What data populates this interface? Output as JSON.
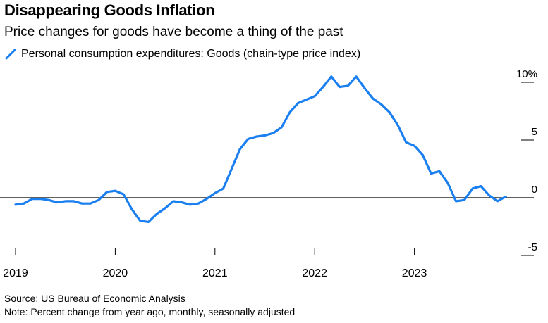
{
  "header": {
    "title": "Disappearing Goods Inflation",
    "subtitle": "Price changes for goods have become a thing of the past"
  },
  "footer": {
    "source": "Source: US Bureau of Economic Analysis",
    "note": "Note: Percent change from year ago, monthly, seasonally adjusted"
  },
  "colors": {
    "series": "#1a7ff0",
    "zero_line": "#000000",
    "tick": "#000000"
  },
  "chart_data": {
    "type": "line",
    "title": "Disappearing Goods Inflation",
    "subtitle": "Price changes for goods have become a thing of the past",
    "legend_position": "top-left",
    "grid": false,
    "y_axis_side": "right",
    "ylim": [
      -5,
      10
    ],
    "xlim": [
      "2019-01",
      "2023-11"
    ],
    "y_ticks": [
      {
        "value": 10,
        "label": "10%"
      },
      {
        "value": 5,
        "label": "5"
      },
      {
        "value": 0,
        "label": "0"
      },
      {
        "value": -5,
        "label": "-5"
      }
    ],
    "x_ticks": [
      {
        "value": "2019-01",
        "label": "2019"
      },
      {
        "value": "2020-01",
        "label": "2020"
      },
      {
        "value": "2021-01",
        "label": "2021"
      },
      {
        "value": "2022-01",
        "label": "2022"
      },
      {
        "value": "2023-01",
        "label": "2023"
      }
    ],
    "series": [
      {
        "name": "Personal consumption expenditures: Goods (chain-type price index)",
        "points": [
          {
            "x": "2019-01",
            "y": -0.6
          },
          {
            "x": "2019-02",
            "y": -0.5
          },
          {
            "x": "2019-03",
            "y": -0.1
          },
          {
            "x": "2019-04",
            "y": -0.1
          },
          {
            "x": "2019-05",
            "y": -0.2
          },
          {
            "x": "2019-06",
            "y": -0.4
          },
          {
            "x": "2019-07",
            "y": -0.3
          },
          {
            "x": "2019-08",
            "y": -0.3
          },
          {
            "x": "2019-09",
            "y": -0.5
          },
          {
            "x": "2019-10",
            "y": -0.5
          },
          {
            "x": "2019-11",
            "y": -0.2
          },
          {
            "x": "2019-12",
            "y": 0.5
          },
          {
            "x": "2020-01",
            "y": 0.6
          },
          {
            "x": "2020-02",
            "y": 0.3
          },
          {
            "x": "2020-03",
            "y": -1.0
          },
          {
            "x": "2020-04",
            "y": -2.0
          },
          {
            "x": "2020-05",
            "y": -2.1
          },
          {
            "x": "2020-06",
            "y": -1.4
          },
          {
            "x": "2020-07",
            "y": -0.9
          },
          {
            "x": "2020-08",
            "y": -0.3
          },
          {
            "x": "2020-09",
            "y": -0.4
          },
          {
            "x": "2020-10",
            "y": -0.6
          },
          {
            "x": "2020-11",
            "y": -0.5
          },
          {
            "x": "2020-12",
            "y": -0.1
          },
          {
            "x": "2021-01",
            "y": 0.4
          },
          {
            "x": "2021-02",
            "y": 0.8
          },
          {
            "x": "2021-03",
            "y": 2.5
          },
          {
            "x": "2021-04",
            "y": 4.2
          },
          {
            "x": "2021-05",
            "y": 5.1
          },
          {
            "x": "2021-06",
            "y": 5.3
          },
          {
            "x": "2021-07",
            "y": 5.4
          },
          {
            "x": "2021-08",
            "y": 5.6
          },
          {
            "x": "2021-09",
            "y": 6.1
          },
          {
            "x": "2021-10",
            "y": 7.4
          },
          {
            "x": "2021-11",
            "y": 8.2
          },
          {
            "x": "2021-12",
            "y": 8.5
          },
          {
            "x": "2022-01",
            "y": 8.8
          },
          {
            "x": "2022-02",
            "y": 9.6
          },
          {
            "x": "2022-03",
            "y": 10.5
          },
          {
            "x": "2022-04",
            "y": 9.6
          },
          {
            "x": "2022-05",
            "y": 9.7
          },
          {
            "x": "2022-06",
            "y": 10.5
          },
          {
            "x": "2022-07",
            "y": 9.5
          },
          {
            "x": "2022-08",
            "y": 8.6
          },
          {
            "x": "2022-09",
            "y": 8.1
          },
          {
            "x": "2022-10",
            "y": 7.4
          },
          {
            "x": "2022-11",
            "y": 6.3
          },
          {
            "x": "2022-12",
            "y": 4.8
          },
          {
            "x": "2023-01",
            "y": 4.5
          },
          {
            "x": "2023-02",
            "y": 3.7
          },
          {
            "x": "2023-03",
            "y": 2.1
          },
          {
            "x": "2023-04",
            "y": 2.3
          },
          {
            "x": "2023-05",
            "y": 1.3
          },
          {
            "x": "2023-06",
            "y": -0.3
          },
          {
            "x": "2023-07",
            "y": -0.2
          },
          {
            "x": "2023-08",
            "y": 0.8
          },
          {
            "x": "2023-09",
            "y": 1.0
          },
          {
            "x": "2023-10",
            "y": 0.2
          },
          {
            "x": "2023-11",
            "y": -0.3
          },
          {
            "x": "2023-12",
            "y": 0.1
          }
        ]
      }
    ]
  }
}
